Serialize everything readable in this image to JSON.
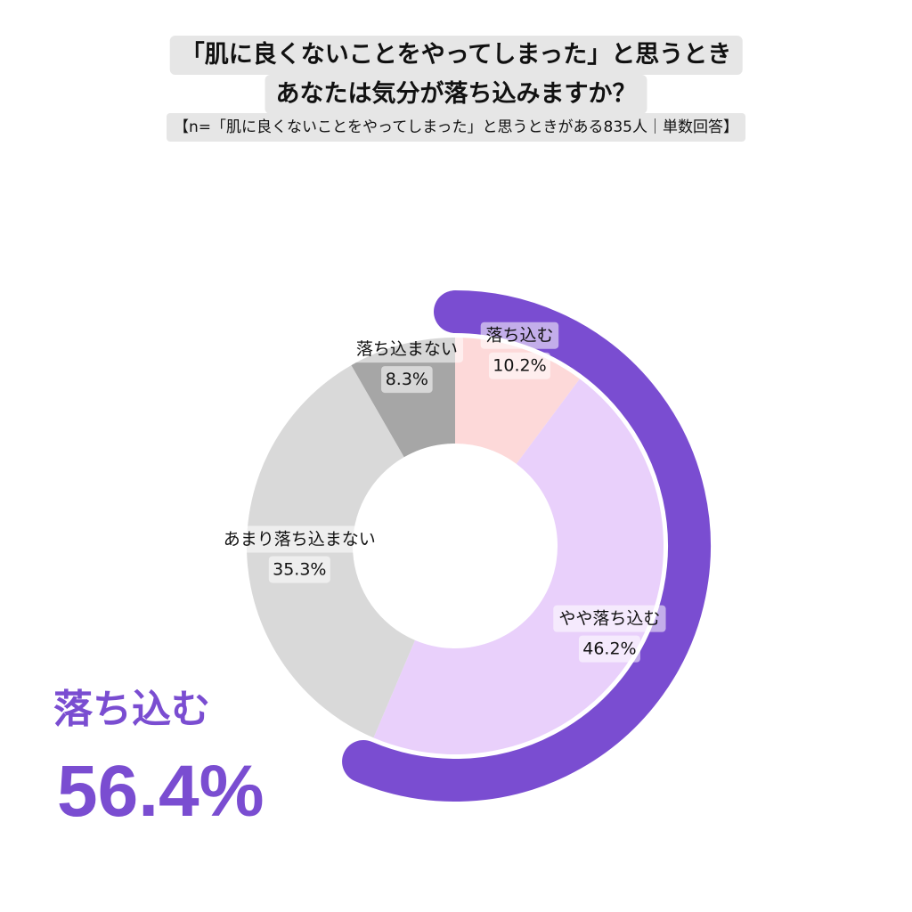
{
  "title": {
    "line1": "「肌に良くないことをやってしまった」と思うとき",
    "line2": "あなたは気分が落ち込みますか？",
    "subtitle": "【n=「肌に良くないことをやってしまった」と思うときがある835人｜単数回答】"
  },
  "chart_data": {
    "type": "pie",
    "variant": "donut",
    "unit": "%",
    "slices": [
      {
        "name": "落ち込む",
        "value": 10.2,
        "label": "10.2%",
        "color": "#fdd9d9"
      },
      {
        "name": "やや落ち込む",
        "value": 46.2,
        "label": "46.2%",
        "color": "#e9d0fb"
      },
      {
        "name": "あまり落ち込まない",
        "value": 35.3,
        "label": "35.3%",
        "color": "#d9d9d9"
      },
      {
        "name": "落ち込まない",
        "value": 8.3,
        "label": "8.3%",
        "color": "#a6a6a6"
      }
    ],
    "highlight": {
      "label": "落ち込む",
      "value": 56.4,
      "value_label": "56.4%",
      "color": "#7a4dd1"
    }
  }
}
